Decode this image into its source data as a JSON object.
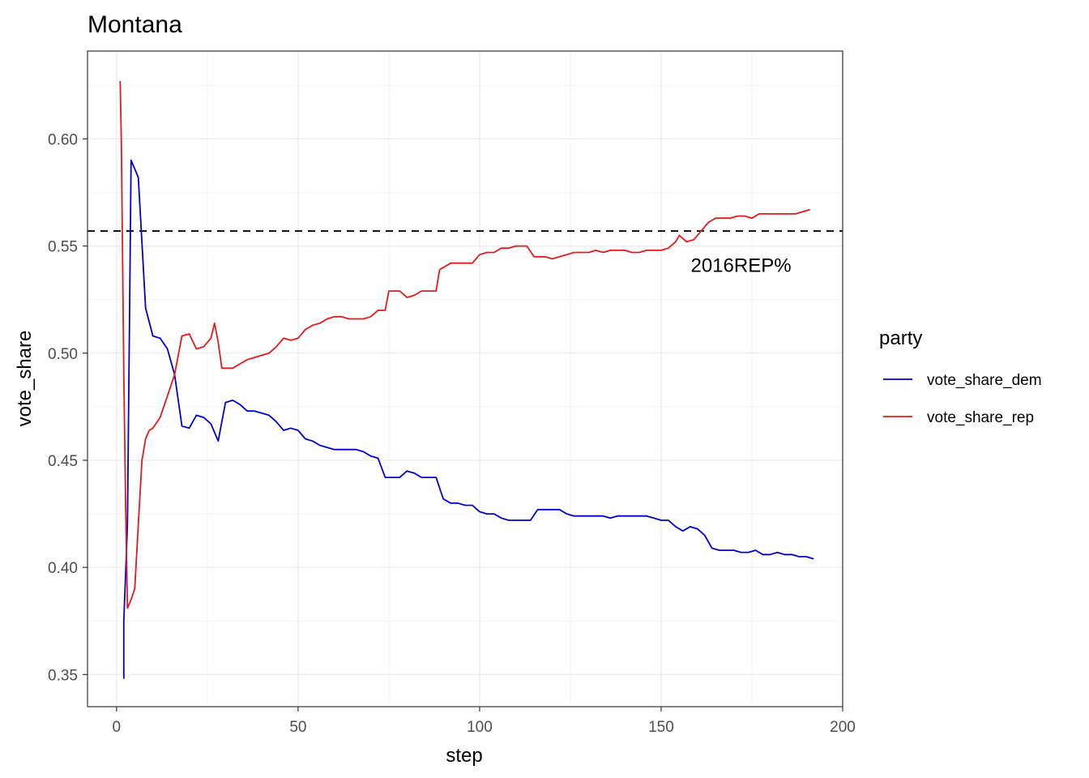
{
  "chart_data": {
    "type": "line",
    "title": "Montana",
    "xlabel": "step",
    "ylabel": "vote_share",
    "xlim": [
      -8,
      200
    ],
    "ylim": [
      0.335,
      0.641
    ],
    "xticks": [
      0,
      50,
      100,
      150,
      200
    ],
    "yticks": [
      0.35,
      0.4,
      0.45,
      0.5,
      0.55,
      0.6
    ],
    "xtick_labels": [
      "0",
      "50",
      "100",
      "150",
      "200"
    ],
    "ytick_labels": [
      "0.35",
      "0.40",
      "0.45",
      "0.50",
      "0.55",
      "0.60"
    ],
    "grid": true,
    "legend": {
      "title": "party",
      "position": "right"
    },
    "hline": {
      "y": 0.557,
      "style": "dashed",
      "color": "#000000"
    },
    "annotation": {
      "text": "2016REP%",
      "x": 172,
      "y": 0.541
    },
    "series": [
      {
        "name": "vote_share_dem",
        "color": "#0000CD",
        "points": [
          [
            2,
            0.348
          ],
          [
            2,
            0.375
          ],
          [
            3,
            0.42
          ],
          [
            4,
            0.59
          ],
          [
            5,
            0.586
          ],
          [
            6,
            0.582
          ],
          [
            8,
            0.521
          ],
          [
            10,
            0.508
          ],
          [
            12,
            0.507
          ],
          [
            14,
            0.502
          ],
          [
            16,
            0.49
          ],
          [
            18,
            0.466
          ],
          [
            20,
            0.465
          ],
          [
            22,
            0.471
          ],
          [
            24,
            0.47
          ],
          [
            26,
            0.467
          ],
          [
            28,
            0.459
          ],
          [
            30,
            0.477
          ],
          [
            32,
            0.478
          ],
          [
            34,
            0.476
          ],
          [
            36,
            0.473
          ],
          [
            38,
            0.473
          ],
          [
            40,
            0.472
          ],
          [
            42,
            0.471
          ],
          [
            44,
            0.468
          ],
          [
            46,
            0.464
          ],
          [
            48,
            0.465
          ],
          [
            50,
            0.464
          ],
          [
            52,
            0.46
          ],
          [
            54,
            0.459
          ],
          [
            56,
            0.457
          ],
          [
            58,
            0.456
          ],
          [
            60,
            0.455
          ],
          [
            62,
            0.455
          ],
          [
            66,
            0.455
          ],
          [
            68,
            0.454
          ],
          [
            70,
            0.452
          ],
          [
            72,
            0.451
          ],
          [
            74,
            0.442
          ],
          [
            76,
            0.442
          ],
          [
            78,
            0.442
          ],
          [
            80,
            0.445
          ],
          [
            82,
            0.444
          ],
          [
            84,
            0.442
          ],
          [
            86,
            0.442
          ],
          [
            88,
            0.442
          ],
          [
            90,
            0.432
          ],
          [
            92,
            0.43
          ],
          [
            94,
            0.43
          ],
          [
            96,
            0.429
          ],
          [
            98,
            0.429
          ],
          [
            100,
            0.426
          ],
          [
            102,
            0.425
          ],
          [
            104,
            0.425
          ],
          [
            106,
            0.423
          ],
          [
            108,
            0.422
          ],
          [
            110,
            0.422
          ],
          [
            112,
            0.422
          ],
          [
            114,
            0.422
          ],
          [
            116,
            0.427
          ],
          [
            118,
            0.427
          ],
          [
            120,
            0.427
          ],
          [
            122,
            0.427
          ],
          [
            124,
            0.425
          ],
          [
            126,
            0.424
          ],
          [
            128,
            0.424
          ],
          [
            130,
            0.424
          ],
          [
            132,
            0.424
          ],
          [
            134,
            0.424
          ],
          [
            136,
            0.423
          ],
          [
            138,
            0.424
          ],
          [
            140,
            0.424
          ],
          [
            142,
            0.424
          ],
          [
            144,
            0.424
          ],
          [
            146,
            0.424
          ],
          [
            148,
            0.423
          ],
          [
            150,
            0.422
          ],
          [
            152,
            0.422
          ],
          [
            154,
            0.419
          ],
          [
            156,
            0.417
          ],
          [
            158,
            0.419
          ],
          [
            160,
            0.418
          ],
          [
            162,
            0.415
          ],
          [
            164,
            0.409
          ],
          [
            166,
            0.408
          ],
          [
            168,
            0.408
          ],
          [
            170,
            0.408
          ],
          [
            172,
            0.407
          ],
          [
            174,
            0.407
          ],
          [
            176,
            0.408
          ],
          [
            178,
            0.406
          ],
          [
            180,
            0.406
          ],
          [
            182,
            0.407
          ],
          [
            184,
            0.406
          ],
          [
            186,
            0.406
          ],
          [
            188,
            0.405
          ],
          [
            190,
            0.405
          ],
          [
            192,
            0.404
          ]
        ]
      },
      {
        "name": "vote_share_rep",
        "color": "#E31A1C",
        "points": [
          [
            1,
            0.627
          ],
          [
            1.3,
            0.6
          ],
          [
            1.6,
            0.555
          ],
          [
            2,
            0.49
          ],
          [
            2.5,
            0.43
          ],
          [
            3,
            0.381
          ],
          [
            4,
            0.385
          ],
          [
            5,
            0.39
          ],
          [
            6,
            0.42
          ],
          [
            7,
            0.45
          ],
          [
            8,
            0.46
          ],
          [
            9,
            0.464
          ],
          [
            10,
            0.465
          ],
          [
            12,
            0.47
          ],
          [
            14,
            0.48
          ],
          [
            16,
            0.49
          ],
          [
            18,
            0.508
          ],
          [
            20,
            0.509
          ],
          [
            22,
            0.502
          ],
          [
            24,
            0.503
          ],
          [
            26,
            0.507
          ],
          [
            27,
            0.514
          ],
          [
            28,
            0.505
          ],
          [
            29,
            0.493
          ],
          [
            30,
            0.493
          ],
          [
            32,
            0.493
          ],
          [
            34,
            0.495
          ],
          [
            36,
            0.497
          ],
          [
            38,
            0.498
          ],
          [
            40,
            0.499
          ],
          [
            42,
            0.5
          ],
          [
            44,
            0.503
          ],
          [
            46,
            0.507
          ],
          [
            48,
            0.506
          ],
          [
            50,
            0.507
          ],
          [
            52,
            0.511
          ],
          [
            54,
            0.513
          ],
          [
            56,
            0.514
          ],
          [
            58,
            0.516
          ],
          [
            60,
            0.517
          ],
          [
            62,
            0.517
          ],
          [
            64,
            0.516
          ],
          [
            66,
            0.516
          ],
          [
            68,
            0.516
          ],
          [
            70,
            0.517
          ],
          [
            72,
            0.52
          ],
          [
            74,
            0.52
          ],
          [
            75,
            0.529
          ],
          [
            78,
            0.529
          ],
          [
            80,
            0.526
          ],
          [
            82,
            0.527
          ],
          [
            84,
            0.529
          ],
          [
            86,
            0.529
          ],
          [
            88,
            0.529
          ],
          [
            89,
            0.539
          ],
          [
            92,
            0.542
          ],
          [
            94,
            0.542
          ],
          [
            96,
            0.542
          ],
          [
            98,
            0.542
          ],
          [
            100,
            0.546
          ],
          [
            102,
            0.547
          ],
          [
            104,
            0.547
          ],
          [
            106,
            0.549
          ],
          [
            108,
            0.549
          ],
          [
            110,
            0.55
          ],
          [
            112,
            0.55
          ],
          [
            113,
            0.55
          ],
          [
            115,
            0.545
          ],
          [
            118,
            0.545
          ],
          [
            120,
            0.544
          ],
          [
            122,
            0.545
          ],
          [
            124,
            0.546
          ],
          [
            126,
            0.547
          ],
          [
            128,
            0.547
          ],
          [
            130,
            0.547
          ],
          [
            132,
            0.548
          ],
          [
            134,
            0.547
          ],
          [
            136,
            0.548
          ],
          [
            138,
            0.548
          ],
          [
            140,
            0.548
          ],
          [
            142,
            0.547
          ],
          [
            144,
            0.547
          ],
          [
            146,
            0.548
          ],
          [
            148,
            0.548
          ],
          [
            150,
            0.548
          ],
          [
            152,
            0.549
          ],
          [
            154,
            0.552
          ],
          [
            155,
            0.555
          ],
          [
            157,
            0.552
          ],
          [
            159,
            0.553
          ],
          [
            161,
            0.557
          ],
          [
            163,
            0.561
          ],
          [
            165,
            0.563
          ],
          [
            167,
            0.563
          ],
          [
            169,
            0.563
          ],
          [
            171,
            0.564
          ],
          [
            173,
            0.564
          ],
          [
            175,
            0.563
          ],
          [
            177,
            0.565
          ],
          [
            179,
            0.565
          ],
          [
            181,
            0.565
          ],
          [
            183,
            0.565
          ],
          [
            185,
            0.565
          ],
          [
            187,
            0.565
          ],
          [
            189,
            0.566
          ],
          [
            191,
            0.567
          ]
        ]
      }
    ]
  }
}
